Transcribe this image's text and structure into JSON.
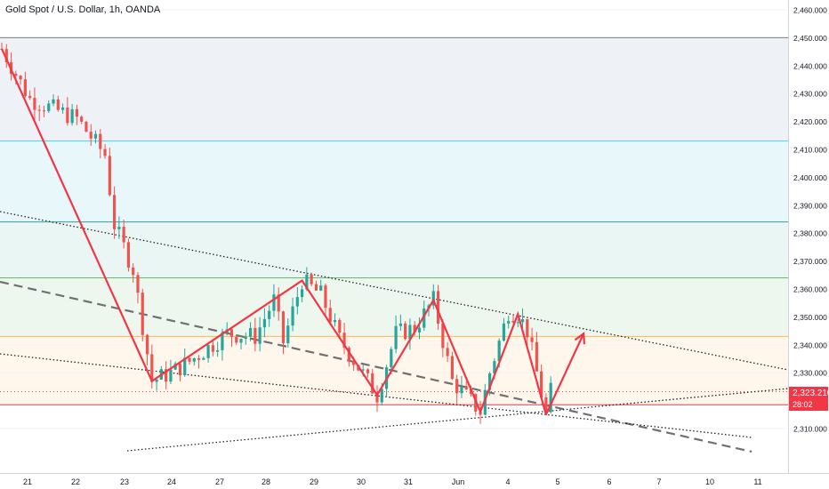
{
  "title": "Gold Spot / U.S. Dollar, 1h, OANDA",
  "price_label": {
    "price": "2,323.210",
    "countdown": "28:02"
  },
  "colors": {
    "up": "#26a69a",
    "down": "#ef5350",
    "wave": "#f23645",
    "cyan_level": "#4dd0e1",
    "teal_level": "#26a69a",
    "green_level": "#66bb6a",
    "orange_level": "#ffb74d",
    "red_level": "#f23645",
    "gray_level": "#787b86"
  },
  "chart_data": {
    "type": "candlestick",
    "symbol": "XAUUSD",
    "timeframe": "1h",
    "ylim": [
      2300,
      2463
    ],
    "y_ticks": [
      "2,310.000",
      "2,320.000",
      "2,330.000",
      "2,340.000",
      "2,350.000",
      "2,360.000",
      "2,370.000",
      "2,380.000",
      "2,390.000",
      "2,400.000",
      "2,410.000",
      "2,420.000",
      "2,430.000",
      "2,440.000",
      "2,450.000",
      "2,460.000"
    ],
    "x_ticks": [
      "21",
      "22",
      "23",
      "24",
      "27",
      "28",
      "29",
      "30",
      "31",
      "Jun",
      "4",
      "5",
      "6",
      "7",
      "10",
      "11"
    ],
    "current_price": 2323.21,
    "levels": [
      {
        "price": 2450,
        "color": "gray"
      },
      {
        "price": 2413,
        "color": "cyan"
      },
      {
        "price": 2384,
        "color": "teal"
      },
      {
        "price": 2364,
        "color": "green"
      },
      {
        "price": 2343,
        "color": "orange"
      },
      {
        "price": 2318.5,
        "color": "red"
      }
    ],
    "zigzag": [
      [
        0,
        2446
      ],
      [
        16,
        2327
      ],
      [
        32,
        2363
      ],
      [
        40,
        2322
      ],
      [
        46,
        2356
      ],
      [
        51,
        2316
      ],
      [
        55,
        2351
      ],
      [
        58,
        2315
      ]
    ],
    "projection_arrow": [
      [
        58,
        2315
      ],
      [
        62,
        2344
      ]
    ],
    "candle_anchors": [
      [
        0,
        2446
      ],
      [
        3,
        2428
      ],
      [
        8,
        2421
      ],
      [
        11,
        2408
      ],
      [
        12,
        2383
      ],
      [
        14,
        2367
      ],
      [
        16,
        2327
      ],
      [
        18,
        2330
      ],
      [
        20,
        2334
      ],
      [
        24,
        2344
      ],
      [
        27,
        2343
      ],
      [
        29,
        2356
      ],
      [
        30,
        2341
      ],
      [
        32,
        2363
      ],
      [
        34,
        2358
      ],
      [
        36,
        2342
      ],
      [
        40,
        2322
      ],
      [
        42,
        2344
      ],
      [
        44,
        2346
      ],
      [
        46,
        2356
      ],
      [
        48,
        2327
      ],
      [
        51,
        2316
      ],
      [
        52,
        2330
      ],
      [
        54,
        2352
      ],
      [
        55,
        2351
      ],
      [
        56,
        2345
      ],
      [
        58,
        2315
      ],
      [
        58.5,
        2323.2
      ]
    ]
  }
}
